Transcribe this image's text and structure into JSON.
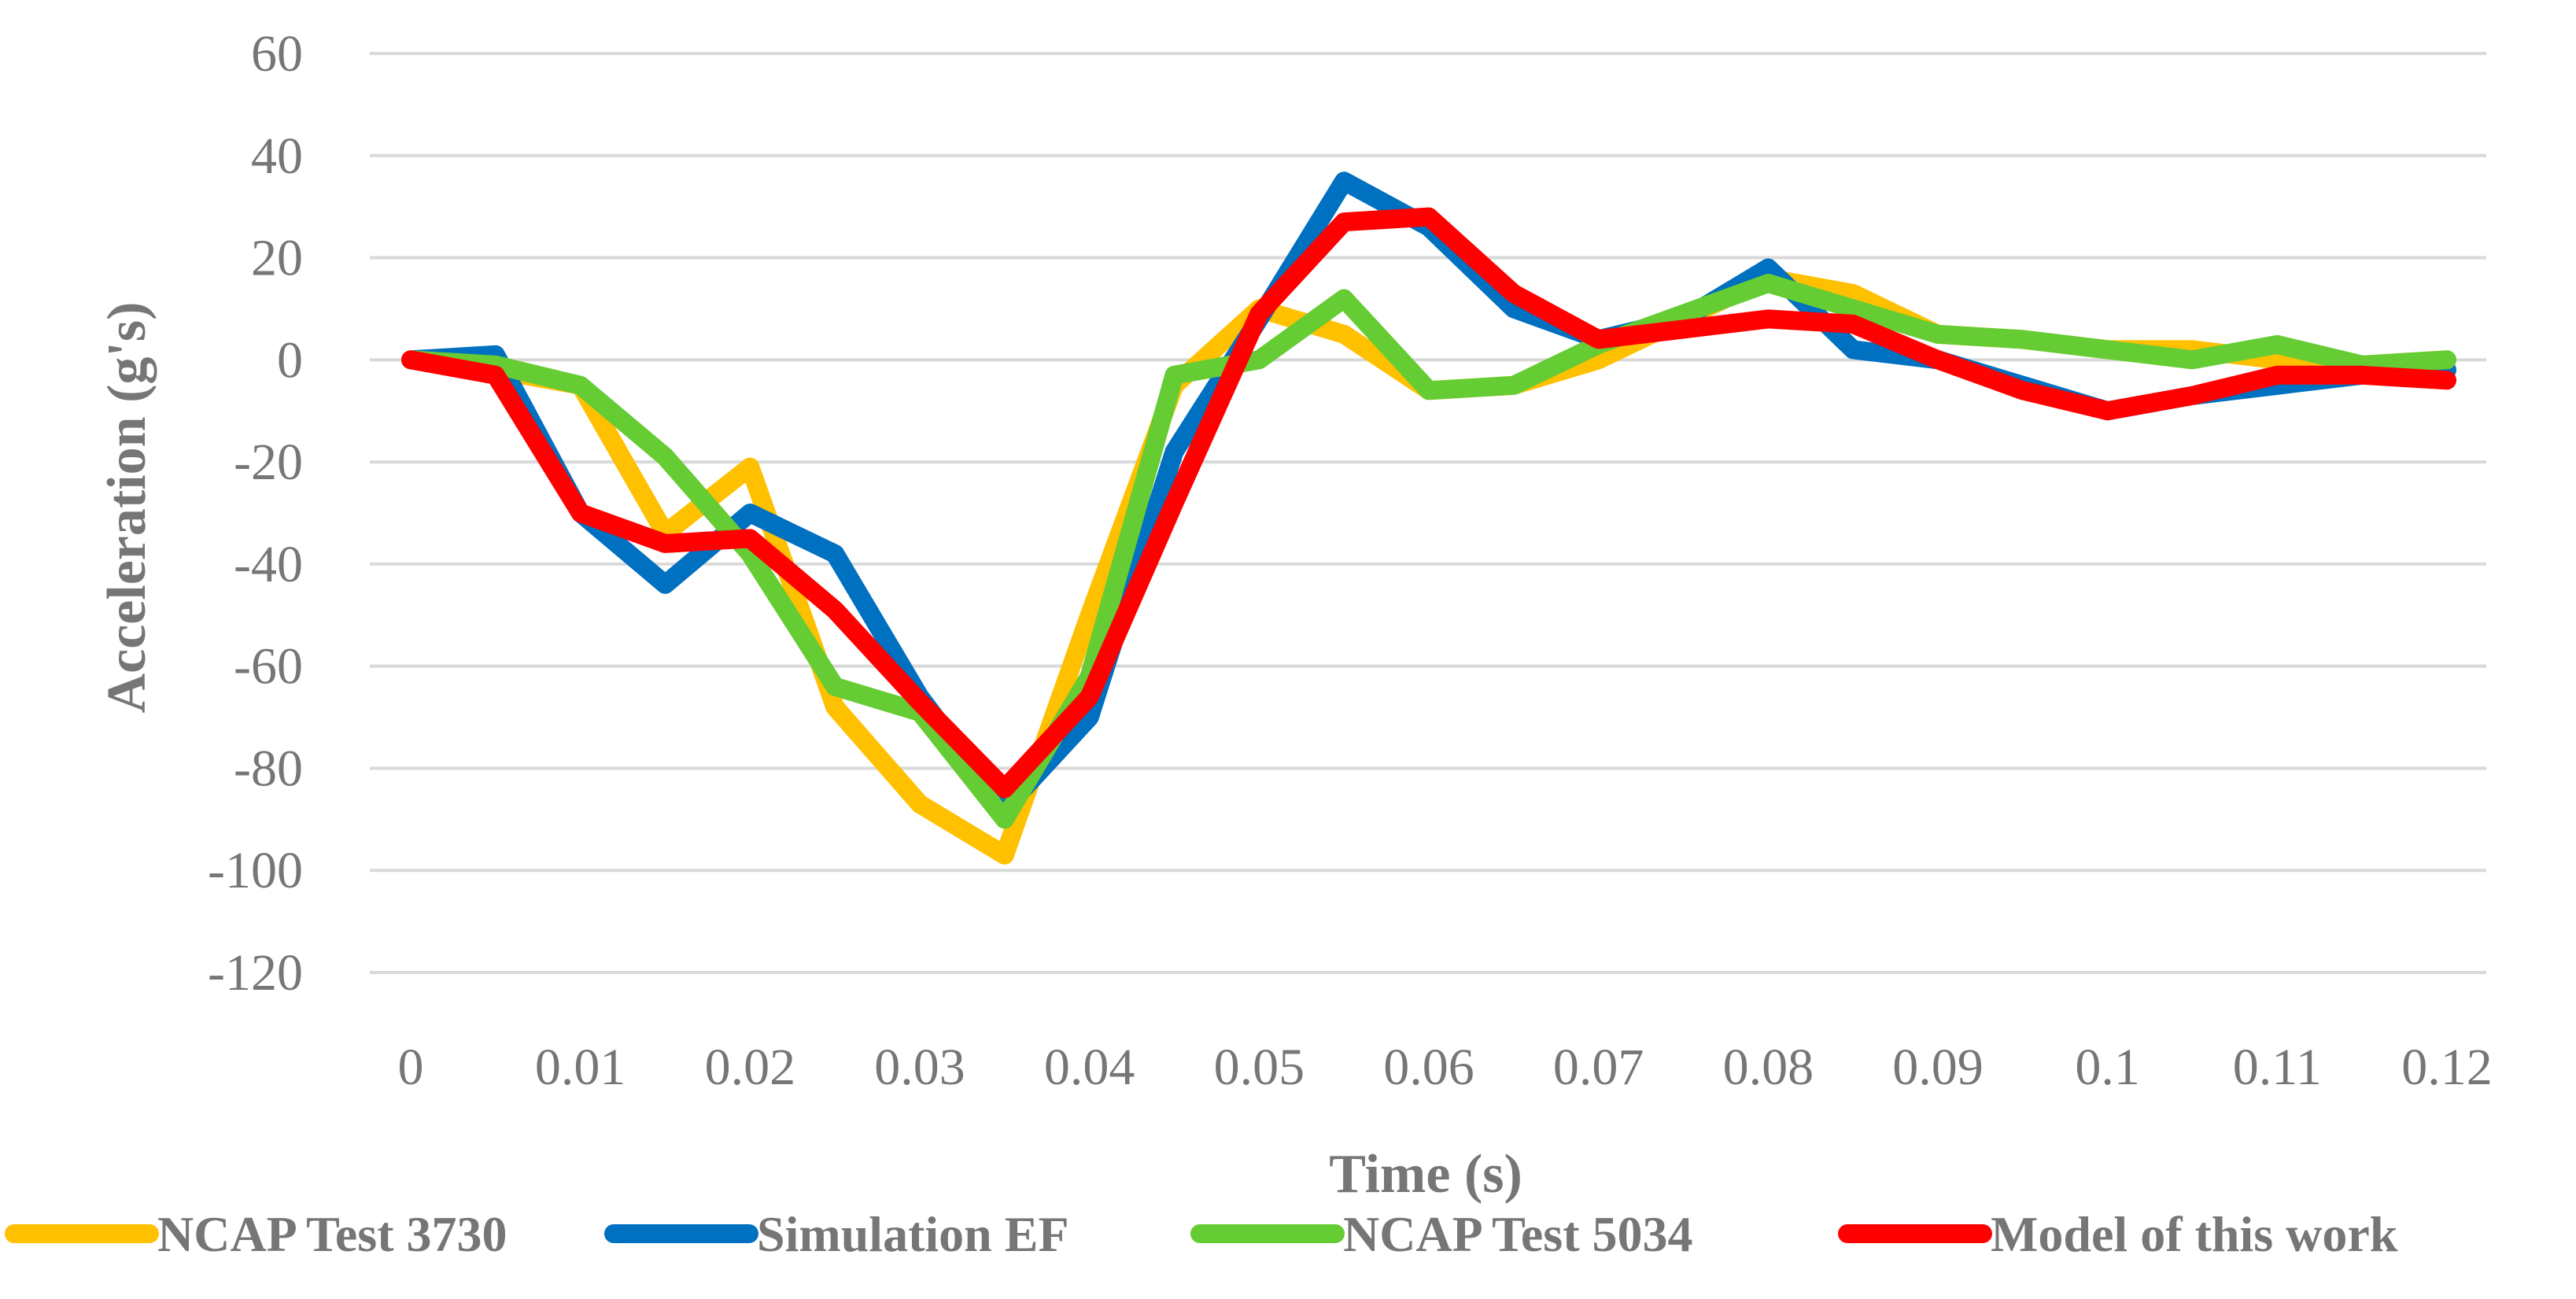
{
  "chart_data": {
    "type": "line",
    "title": "",
    "xlabel": "Time (s)",
    "ylabel": "Acceleration (g's)",
    "ylim": [
      -120,
      60
    ],
    "yticks": [
      60,
      40,
      20,
      0,
      -20,
      -40,
      -60,
      -80,
      -100,
      -120
    ],
    "ytick_labels": [
      "60",
      "40",
      "20",
      "0",
      "-20",
      "-40",
      "-60",
      "-80",
      "-100",
      "-120"
    ],
    "xlim": [
      0,
      0.12
    ],
    "xticks": [
      0,
      0.01,
      0.02,
      0.03,
      0.04,
      0.05,
      0.06,
      0.07,
      0.08,
      0.09,
      0.1,
      0.11,
      0.12
    ],
    "xtick_labels": [
      "0",
      "0.01",
      "0.02",
      "0.03",
      "0.04",
      "0.05",
      "0.06",
      "0.07",
      "0.08",
      "0.09",
      "0.1",
      "0.11",
      "0.12"
    ],
    "grid": "horizontal",
    "legend_position": "bottom",
    "x": [
      0,
      0.005,
      0.01,
      0.015,
      0.02,
      0.025,
      0.03,
      0.035,
      0.04,
      0.045,
      0.05,
      0.055,
      0.06,
      0.065,
      0.07,
      0.075,
      0.08,
      0.085,
      0.09,
      0.095,
      0.1,
      0.105,
      0.11,
      0.115,
      0.12
    ],
    "series": [
      {
        "name": "NCAP Test 3730",
        "color": "#FFC000",
        "values": [
          0,
          -2,
          -5,
          -34,
          -21,
          -68,
          -87,
          -97,
          -50,
          -5,
          10,
          5,
          -6,
          -5,
          0,
          8,
          16,
          13,
          5,
          4,
          2,
          2,
          0,
          -1,
          0
        ]
      },
      {
        "name": "Simulation EF",
        "color": "#0070C0",
        "values": [
          0,
          1,
          -30,
          -44,
          -30,
          -38,
          -66,
          -88,
          -70,
          -18,
          8,
          35,
          26,
          10,
          4,
          8,
          18,
          2,
          0,
          -5,
          -10,
          -7,
          -5,
          -3,
          -2
        ]
      },
      {
        "name": "NCAP Test 5034",
        "color": "#66CC33",
        "values": [
          0,
          -1,
          -5,
          -19,
          -38,
          -64,
          -69,
          -90,
          -62,
          -3,
          0,
          12,
          -6,
          -5,
          3,
          9,
          15,
          10,
          5,
          4,
          2,
          0,
          3,
          -1,
          0
        ]
      },
      {
        "name": "Model of this work",
        "color": "#FF0000",
        "values": [
          0,
          -3,
          -30,
          -36,
          -35,
          -49,
          -67,
          -84,
          -66,
          -28,
          9,
          27,
          28,
          13,
          4,
          6,
          8,
          7,
          0,
          -6,
          -10,
          -7,
          -3,
          -3,
          -4
        ]
      }
    ]
  }
}
